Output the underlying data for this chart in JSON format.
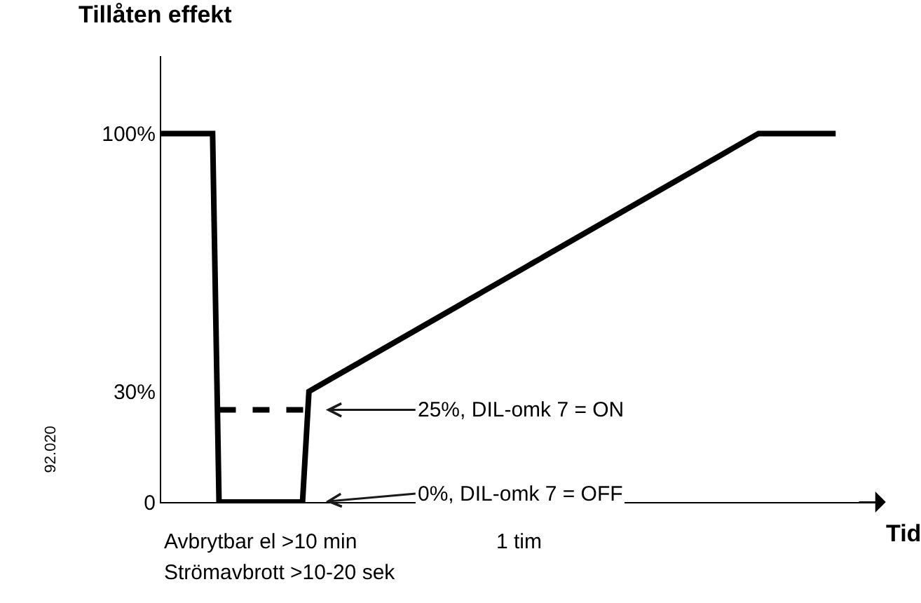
{
  "chart_data": {
    "type": "line",
    "ylabel": "Tillåten effekt",
    "xlabel": "Tid",
    "categories": [
      null,
      null,
      null,
      null,
      null,
      null,
      null,
      null,
      null,
      null,
      null,
      null,
      null,
      null,
      null,
      null,
      null,
      null,
      null,
      null,
      null,
      null,
      null,
      null,
      null,
      null,
      null,
      null,
      null,
      null,
      null,
      null,
      null,
      null,
      null,
      null,
      null,
      null,
      null,
      null,
      null,
      null,
      null,
      null,
      null,
      null,
      null,
      null,
      null,
      null,
      null,
      null,
      null,
      null,
      null,
      null,
      null,
      null,
      null,
      null,
      null,
      null,
      null,
      null,
      null,
      null,
      null,
      null,
      null,
      null,
      null,
      null,
      null,
      null,
      null,
      null,
      null,
      null,
      null,
      null,
      null,
      null,
      null,
      null,
      null,
      null,
      null,
      null,
      null,
      null,
      null,
      null,
      null,
      null,
      null,
      null,
      null,
      null,
      null,
      null,
      null,
      null,
      null,
      null,
      null,
      null
    ],
    "series": [
      {
        "color": "#000000",
        "line_style": "solid",
        "values": [
          100,
          100,
          100,
          100,
          100,
          100,
          100,
          100,
          100,
          0,
          0,
          0,
          0,
          0,
          0,
          0,
          0,
          0,
          0,
          0,
          0,
          0,
          0,
          30,
          31,
          32,
          33,
          34,
          35,
          36,
          37,
          38,
          39,
          40,
          41,
          42,
          43,
          44,
          45,
          46,
          47,
          48,
          49,
          50,
          51,
          52,
          53,
          54,
          55,
          56,
          57,
          58,
          59,
          60,
          61,
          62,
          63,
          64,
          65,
          66,
          67,
          68,
          69,
          70,
          71,
          72,
          73,
          74,
          75,
          76,
          77,
          78,
          79,
          80,
          81,
          82,
          83,
          84,
          85,
          86,
          87,
          88,
          89,
          90,
          91,
          92,
          93,
          94,
          95,
          96,
          97,
          98,
          99,
          100,
          100,
          100,
          100,
          100,
          100,
          100,
          100,
          100,
          100,
          100,
          100,
          100
        ]
      },
      {
        "color": "#000000",
        "line_style": "dashed",
        "values": [
          null,
          null,
          null,
          null,
          null,
          null,
          null,
          null,
          null,
          25,
          25,
          25,
          25,
          25,
          25,
          25,
          25,
          25,
          25,
          25,
          25,
          25,
          25,
          25,
          null,
          null,
          null,
          null,
          null,
          null,
          null,
          null,
          null,
          null,
          null,
          null,
          null,
          null,
          null,
          null,
          null,
          null,
          null,
          null,
          null,
          null,
          null,
          null,
          null,
          null,
          null,
          null,
          null,
          null,
          null,
          null,
          null,
          null,
          null,
          null,
          null,
          null,
          null,
          null,
          null,
          null,
          null,
          null,
          null,
          null,
          null,
          null,
          null,
          null,
          null,
          null,
          null,
          null,
          null,
          null,
          null,
          null,
          null,
          null,
          null,
          null,
          null,
          null,
          null,
          null,
          null,
          null,
          null,
          null,
          null,
          null,
          null,
          null,
          null,
          null,
          null,
          null,
          null,
          null,
          null,
          null
        ]
      }
    ],
    "ylim": [
      0,
      121
    ],
    "yticks": [
      {
        "value": 0,
        "label": "0"
      },
      {
        "value": 30,
        "label": "30%"
      },
      {
        "value": 100,
        "label": "100%"
      }
    ],
    "marker": "none",
    "annotations": [
      "Avbrytbar el >10 min",
      "Strömavbrott >10-20 sek",
      "1 tim",
      "92.020",
      "25%, DIL-omk 7 = ON",
      "0%, DIL-omk 7 = OFF"
    ]
  }
}
